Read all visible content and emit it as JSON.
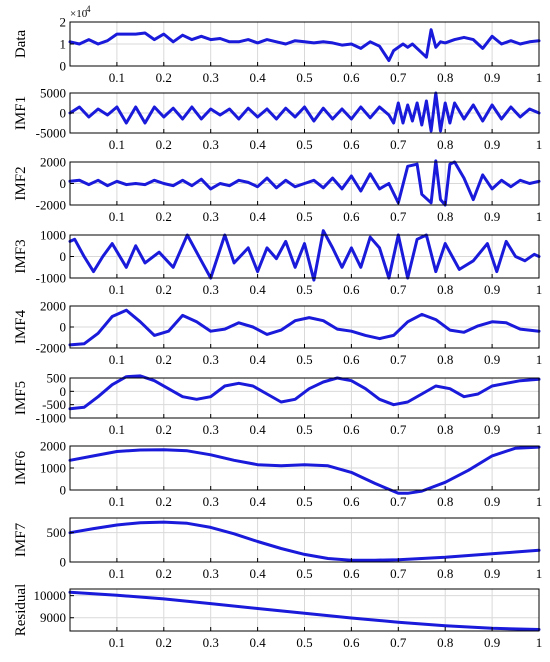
{
  "colors": {
    "series": "#1a1adb",
    "grid": "#d9d9d9",
    "axes": "#000000"
  },
  "x_ticks": [
    "0.1",
    "0.2",
    "0.3",
    "0.4",
    "0.5",
    "0.6",
    "0.7",
    "0.8",
    "0.9",
    "1"
  ],
  "chart_data": [
    {
      "type": "line",
      "ylabel": "Data",
      "xlim": [
        0,
        1
      ],
      "ylim": [
        0,
        20000
      ],
      "yticks": [
        0,
        10000,
        20000
      ],
      "ytick_labels": [
        "0",
        "1",
        "2"
      ],
      "y_exponent": "×10",
      "y_exponent_power": "4",
      "grid": true,
      "x": [
        0,
        0.02,
        0.04,
        0.06,
        0.08,
        0.1,
        0.12,
        0.14,
        0.16,
        0.18,
        0.2,
        0.22,
        0.24,
        0.26,
        0.28,
        0.3,
        0.32,
        0.34,
        0.36,
        0.38,
        0.4,
        0.42,
        0.44,
        0.46,
        0.48,
        0.5,
        0.52,
        0.54,
        0.56,
        0.58,
        0.6,
        0.62,
        0.64,
        0.66,
        0.68,
        0.69,
        0.71,
        0.72,
        0.73,
        0.75,
        0.76,
        0.77,
        0.78,
        0.79,
        0.8,
        0.82,
        0.84,
        0.86,
        0.88,
        0.9,
        0.92,
        0.94,
        0.96,
        0.98,
        1.0
      ],
      "values": [
        11000,
        10000,
        12000,
        10000,
        11500,
        14500,
        14500,
        14500,
        15000,
        12000,
        14500,
        11000,
        14000,
        12000,
        13500,
        12000,
        12500,
        11000,
        11000,
        12000,
        10500,
        12000,
        11000,
        10000,
        11500,
        11000,
        10500,
        11000,
        10500,
        9500,
        10000,
        8000,
        11000,
        9000,
        2500,
        7000,
        10000,
        8500,
        10000,
        6000,
        4000,
        16500,
        8500,
        11000,
        10500,
        12000,
        13000,
        12000,
        8000,
        13500,
        10000,
        11500,
        10000,
        11000,
        11500
      ]
    },
    {
      "type": "line",
      "ylabel": "IMF1",
      "xlim": [
        0,
        1
      ],
      "ylim": [
        -5000,
        5000
      ],
      "yticks": [
        -5000,
        0,
        5000
      ],
      "ytick_labels": [
        "-5000",
        "0",
        "5000"
      ],
      "grid": true,
      "x": [
        0,
        0.02,
        0.04,
        0.06,
        0.08,
        0.1,
        0.12,
        0.14,
        0.16,
        0.18,
        0.2,
        0.22,
        0.24,
        0.26,
        0.28,
        0.3,
        0.32,
        0.34,
        0.36,
        0.38,
        0.4,
        0.42,
        0.44,
        0.46,
        0.48,
        0.5,
        0.52,
        0.54,
        0.56,
        0.58,
        0.6,
        0.62,
        0.64,
        0.66,
        0.68,
        0.69,
        0.7,
        0.71,
        0.72,
        0.73,
        0.74,
        0.75,
        0.76,
        0.77,
        0.78,
        0.79,
        0.8,
        0.81,
        0.82,
        0.84,
        0.86,
        0.88,
        0.9,
        0.92,
        0.94,
        0.96,
        0.98,
        1.0
      ],
      "values": [
        0,
        1500,
        -1000,
        1000,
        -500,
        1500,
        -2500,
        1500,
        -2500,
        1500,
        -1000,
        1200,
        -1500,
        1500,
        -1500,
        1000,
        -500,
        1000,
        -1500,
        1200,
        -1000,
        1000,
        -1500,
        1200,
        -1000,
        1500,
        -2000,
        1200,
        -1500,
        1000,
        -1500,
        1500,
        -1200,
        1500,
        -500,
        -2500,
        2500,
        -2500,
        2000,
        -2000,
        2500,
        -3000,
        3000,
        -4500,
        5000,
        -4500,
        2500,
        -2500,
        2500,
        -1500,
        2000,
        -2000,
        2000,
        -1500,
        1500,
        -1000,
        1000,
        0
      ]
    },
    {
      "type": "line",
      "ylabel": "IMF2",
      "xlim": [
        0,
        1
      ],
      "ylim": [
        -2000,
        2000
      ],
      "yticks": [
        -2000,
        0,
        2000
      ],
      "ytick_labels": [
        "-2000",
        "0",
        "2000"
      ],
      "grid": true,
      "x": [
        0,
        0.02,
        0.04,
        0.06,
        0.08,
        0.1,
        0.12,
        0.14,
        0.16,
        0.18,
        0.2,
        0.22,
        0.24,
        0.26,
        0.28,
        0.3,
        0.32,
        0.34,
        0.36,
        0.38,
        0.4,
        0.42,
        0.44,
        0.46,
        0.48,
        0.5,
        0.52,
        0.54,
        0.56,
        0.58,
        0.6,
        0.62,
        0.64,
        0.66,
        0.68,
        0.7,
        0.72,
        0.74,
        0.75,
        0.77,
        0.78,
        0.79,
        0.8,
        0.81,
        0.82,
        0.84,
        0.86,
        0.88,
        0.9,
        0.92,
        0.94,
        0.96,
        0.98,
        1.0
      ],
      "values": [
        200,
        300,
        -100,
        300,
        -200,
        200,
        -100,
        0,
        -100,
        300,
        0,
        -200,
        300,
        -200,
        400,
        -500,
        0,
        -200,
        300,
        100,
        -300,
        500,
        -400,
        300,
        -300,
        0,
        300,
        -400,
        500,
        -500,
        700,
        -700,
        900,
        -500,
        0,
        -1800,
        1600,
        1800,
        -1000,
        -1800,
        2100,
        -1500,
        -2000,
        1800,
        2000,
        500,
        -1500,
        800,
        -500,
        300,
        -300,
        300,
        0,
        200
      ]
    },
    {
      "type": "line",
      "ylabel": "IMF3",
      "xlim": [
        0,
        1
      ],
      "ylim": [
        -1000,
        1000
      ],
      "yticks": [
        -1000,
        0,
        1000
      ],
      "ytick_labels": [
        "-1000",
        "0",
        "1000"
      ],
      "grid": true,
      "x": [
        0,
        0.01,
        0.03,
        0.05,
        0.07,
        0.09,
        0.12,
        0.14,
        0.16,
        0.19,
        0.22,
        0.25,
        0.28,
        0.3,
        0.33,
        0.35,
        0.38,
        0.4,
        0.42,
        0.44,
        0.46,
        0.48,
        0.5,
        0.52,
        0.54,
        0.56,
        0.58,
        0.6,
        0.62,
        0.64,
        0.66,
        0.68,
        0.7,
        0.72,
        0.74,
        0.76,
        0.78,
        0.8,
        0.83,
        0.86,
        0.89,
        0.91,
        0.93,
        0.95,
        0.97,
        0.99,
        1.0
      ],
      "values": [
        700,
        800,
        0,
        -700,
        0,
        600,
        -500,
        500,
        -300,
        200,
        -500,
        1000,
        -200,
        -1000,
        1000,
        -300,
        400,
        -700,
        400,
        -100,
        700,
        -500,
        600,
        -1100,
        1200,
        400,
        -500,
        400,
        -500,
        900,
        400,
        -1000,
        1000,
        -1000,
        800,
        1000,
        -700,
        600,
        -600,
        -200,
        600,
        -700,
        700,
        0,
        -200,
        100,
        0
      ]
    },
    {
      "type": "line",
      "ylabel": "IMF4",
      "xlim": [
        0,
        1
      ],
      "ylim": [
        -2000,
        2000
      ],
      "yticks": [
        -2000,
        0,
        2000
      ],
      "ytick_labels": [
        "-2000",
        "0",
        "2000"
      ],
      "grid": true,
      "x": [
        0,
        0.03,
        0.06,
        0.09,
        0.12,
        0.15,
        0.18,
        0.21,
        0.24,
        0.27,
        0.3,
        0.33,
        0.36,
        0.39,
        0.42,
        0.45,
        0.48,
        0.51,
        0.54,
        0.57,
        0.6,
        0.63,
        0.66,
        0.69,
        0.72,
        0.75,
        0.78,
        0.81,
        0.84,
        0.87,
        0.9,
        0.93,
        0.96,
        1.0
      ],
      "values": [
        -1700,
        -1600,
        -600,
        1000,
        1600,
        500,
        -800,
        -400,
        1100,
        500,
        -400,
        -200,
        400,
        0,
        -700,
        -300,
        600,
        900,
        600,
        -200,
        -400,
        -800,
        -1100,
        -800,
        500,
        1200,
        700,
        -300,
        -500,
        100,
        500,
        400,
        -200,
        -400
      ]
    },
    {
      "type": "line",
      "ylabel": "IMF5",
      "xlim": [
        0,
        1
      ],
      "ylim": [
        -1000,
        500
      ],
      "yticks": [
        -1000,
        -500,
        0,
        500
      ],
      "ytick_labels": [
        "-1000",
        "-500",
        "0",
        "500"
      ],
      "grid": true,
      "x": [
        0,
        0.03,
        0.06,
        0.09,
        0.12,
        0.15,
        0.18,
        0.21,
        0.24,
        0.27,
        0.3,
        0.33,
        0.36,
        0.39,
        0.42,
        0.45,
        0.48,
        0.51,
        0.54,
        0.57,
        0.6,
        0.63,
        0.66,
        0.69,
        0.72,
        0.75,
        0.78,
        0.81,
        0.84,
        0.87,
        0.9,
        0.93,
        0.96,
        1.0
      ],
      "values": [
        -650,
        -600,
        -200,
        250,
        550,
        580,
        400,
        100,
        -200,
        -300,
        -200,
        200,
        300,
        200,
        -100,
        -400,
        -300,
        100,
        350,
        500,
        400,
        100,
        -300,
        -500,
        -400,
        -100,
        200,
        100,
        -200,
        -100,
        200,
        300,
        400,
        450
      ]
    },
    {
      "type": "line",
      "ylabel": "IMF6",
      "xlim": [
        0,
        1
      ],
      "ylim": [
        0,
        2000
      ],
      "yticks": [
        0,
        1000,
        2000
      ],
      "ytick_labels": [
        "0",
        "1000",
        "2000"
      ],
      "grid": true,
      "x": [
        0,
        0.05,
        0.1,
        0.15,
        0.2,
        0.25,
        0.3,
        0.35,
        0.4,
        0.45,
        0.5,
        0.55,
        0.6,
        0.65,
        0.7,
        0.72,
        0.75,
        0.8,
        0.85,
        0.9,
        0.95,
        1.0
      ],
      "values": [
        1350,
        1550,
        1750,
        1820,
        1830,
        1780,
        1600,
        1350,
        1150,
        1100,
        1150,
        1100,
        800,
        300,
        -150,
        -150,
        -50,
        350,
        900,
        1550,
        1900,
        1950
      ]
    },
    {
      "type": "line",
      "ylabel": "IMF7",
      "xlim": [
        0,
        1
      ],
      "ylim": [
        0,
        750
      ],
      "yticks": [
        0,
        500
      ],
      "ytick_labels": [
        "0",
        "500"
      ],
      "grid": true,
      "x": [
        0,
        0.05,
        0.1,
        0.15,
        0.2,
        0.25,
        0.3,
        0.35,
        0.4,
        0.45,
        0.5,
        0.55,
        0.6,
        0.65,
        0.7,
        0.75,
        0.8,
        0.85,
        0.9,
        0.95,
        1.0
      ],
      "values": [
        500,
        570,
        630,
        670,
        680,
        660,
        590,
        480,
        350,
        230,
        130,
        60,
        30,
        30,
        40,
        60,
        80,
        110,
        140,
        170,
        200
      ]
    },
    {
      "type": "line",
      "ylabel": "Residual",
      "xlim": [
        0,
        1
      ],
      "ylim": [
        8400,
        10300
      ],
      "yticks": [
        9000,
        10000
      ],
      "ytick_labels": [
        "9000",
        "10000"
      ],
      "grid": true,
      "x": [
        0,
        0.1,
        0.2,
        0.3,
        0.4,
        0.5,
        0.6,
        0.7,
        0.8,
        0.9,
        1.0
      ],
      "values": [
        10150,
        10020,
        9850,
        9640,
        9420,
        9200,
        8990,
        8800,
        8640,
        8520,
        8470
      ]
    }
  ]
}
